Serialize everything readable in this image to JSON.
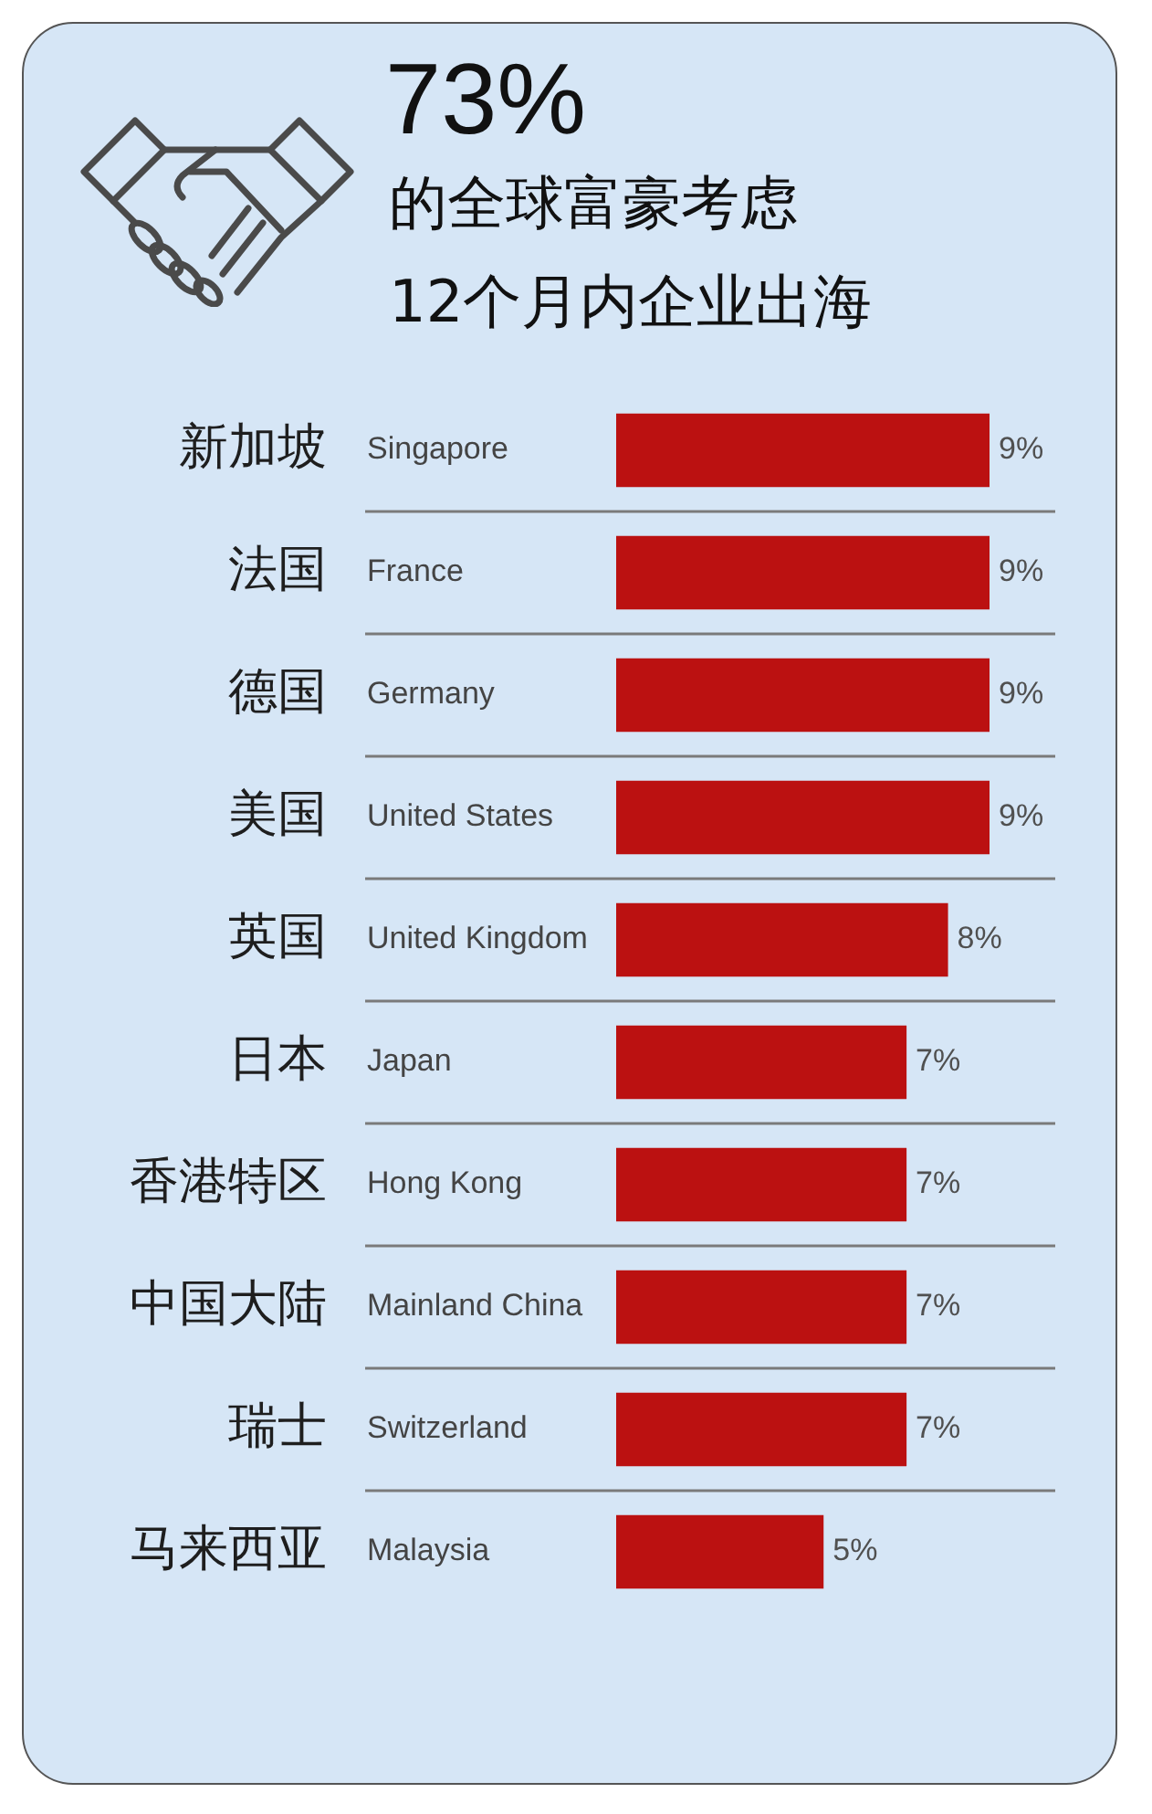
{
  "chart_data": {
    "type": "bar",
    "orientation": "horizontal",
    "title": "73%",
    "subtitle": "的全球富豪考虑\n12个月内企业出海",
    "categories": [
      "新加坡",
      "法国",
      "德国",
      "美国",
      "英国",
      "日本",
      "香港特区",
      "中国大陆",
      "瑞士",
      "马来西亚"
    ],
    "y2_categories": [
      "Singapore",
      "France",
      "Germany",
      "United States",
      "United Kingdom",
      "Japan",
      "Hong Kong",
      "Mainland China",
      "Switzerland",
      "Malaysia"
    ],
    "values": [
      9,
      9,
      9,
      9,
      8,
      7,
      7,
      7,
      7,
      5
    ],
    "value_labels": [
      "9%",
      "9%",
      "9%",
      "9%",
      "8%",
      "7%",
      "7%",
      "7%",
      "7%",
      "5%"
    ],
    "color": "#bb1111",
    "grid": "y"
  }
}
